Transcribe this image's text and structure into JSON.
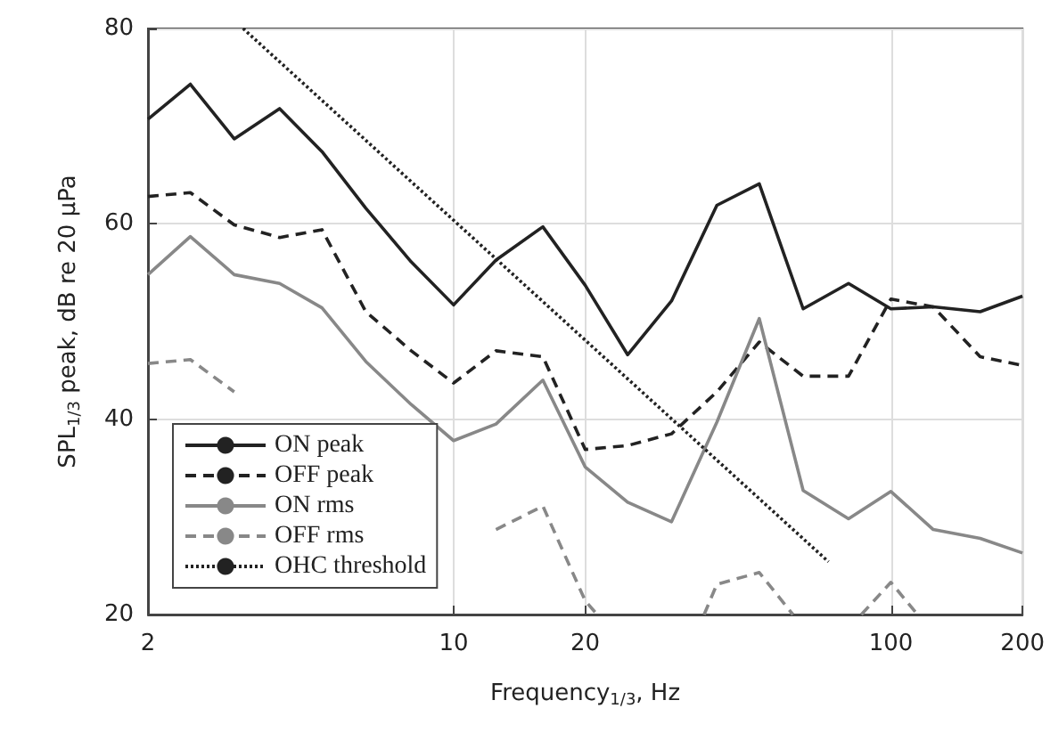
{
  "chart_data": {
    "type": "line",
    "xlabel": "Frequency$_{1/3}$, Hz",
    "ylabel": "SPL$_{1/3}$ peak, dB re 20 μPa",
    "x": [
      2,
      2.5,
      3.15,
      4,
      5,
      6.3,
      8,
      10,
      12.5,
      16,
      20,
      25,
      31.5,
      40,
      50,
      63,
      80,
      100,
      125,
      160,
      200
    ],
    "series": [
      {
        "name": "ON peak",
        "color": "#222222",
        "line_style": "solid",
        "values": [
          70.7,
          74.3,
          68.7,
          71.8,
          67.4,
          61.6,
          56.1,
          51.7,
          56.3,
          59.7,
          53.7,
          46.6,
          52.1,
          61.9,
          64.1,
          51.3,
          53.9,
          51.3,
          51.5,
          51,
          52.6
        ]
      },
      {
        "name": "OFF peak",
        "color": "#222222",
        "line_style": "dashed",
        "values": [
          62.8,
          63.2,
          59.9,
          58.6,
          59.4,
          51,
          47,
          43.7,
          47,
          46.4,
          36.9,
          37.3,
          38.5,
          42.8,
          47.9,
          44.4,
          44.4,
          52.3,
          51.5,
          46.4,
          45.5
        ]
      },
      {
        "name": "ON rms",
        "color": "#888888",
        "line_style": "solid",
        "values": [
          54.8,
          58.7,
          54.8,
          53.9,
          51.4,
          45.9,
          41.5,
          37.8,
          39.5,
          44,
          35.1,
          31.5,
          29.5,
          39.7,
          50.3,
          32.7,
          29.8,
          32.6,
          28.7,
          27.8,
          26.3
        ]
      },
      {
        "name": "OFF rms",
        "color": "#888888",
        "line_style": "dashed",
        "x": [
          2,
          2.5,
          3.15,
          4,
          12.5,
          16,
          20,
          21.3,
          25,
          37.4,
          40,
          50,
          59.7,
          63,
          85.6,
          100,
          115
        ],
        "values": [
          45.7,
          46.1,
          42.8,
          null,
          28.7,
          31.1,
          21.4,
          20,
          null,
          20,
          23.1,
          24.3,
          20,
          null,
          20,
          23.3,
          20
        ]
      },
      {
        "name": "OHC threshold",
        "color": "#222222",
        "line_style": "dotted",
        "x": [
          3.3,
          72
        ],
        "values": [
          80,
          25.4
        ]
      }
    ],
    "xlim": [
      2,
      200
    ],
    "xticks": [
      2,
      10,
      20,
      100,
      200
    ],
    "ylim": [
      20,
      80
    ],
    "yticks": [
      20,
      40,
      60,
      80
    ],
    "log": "x",
    "grid": true,
    "legend": "bottom left",
    "marker": "none"
  }
}
